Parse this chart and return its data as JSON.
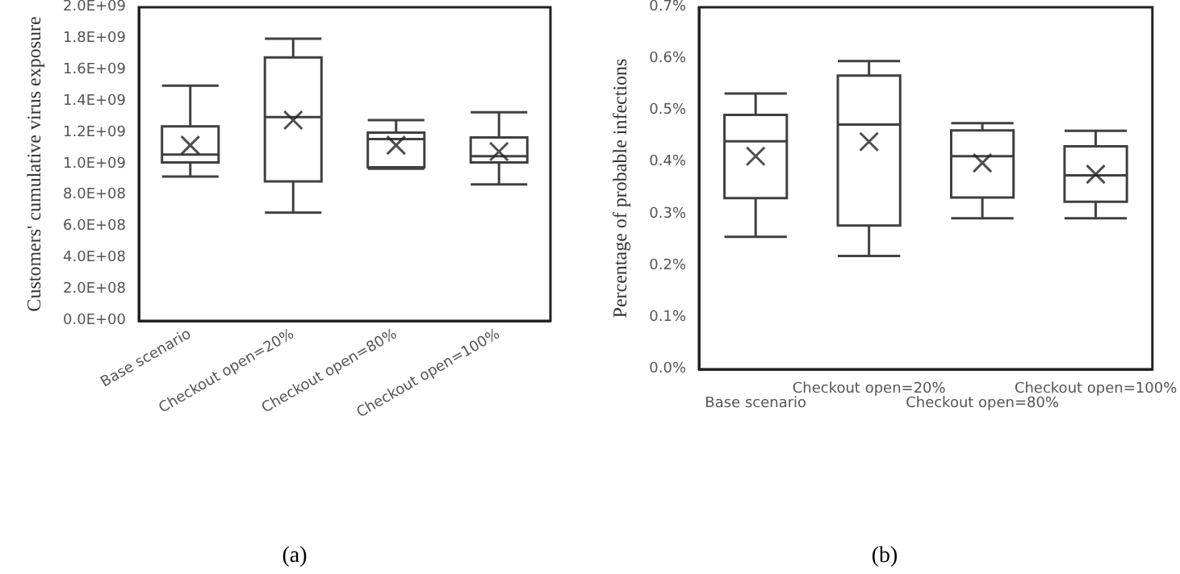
{
  "chart_data": [
    {
      "type": "box",
      "ylabel": "Customers' cumulative virus exposure",
      "categories": [
        "Base scenario",
        "Checkout open=20%",
        "Checkout open=80%",
        "Checkout open=100%"
      ],
      "color": "#404040",
      "marker": "cross",
      "boxes": [
        {
          "low": 920000000,
          "q1": 1010000000,
          "median": 1060000000,
          "q3": 1240000000,
          "high": 1500000000,
          "mean": 1120000000
        },
        {
          "low": 690000000,
          "q1": 890000000,
          "median": 1300000000,
          "q3": 1680000000,
          "high": 1800000000,
          "mean": 1280000000
        },
        {
          "low": 970000000,
          "q1": 980000000,
          "median": 1160000000,
          "q3": 1200000000,
          "high": 1280000000,
          "mean": 1120000000
        },
        {
          "low": 870000000,
          "q1": 1010000000,
          "median": 1050000000,
          "q3": 1170000000,
          "high": 1330000000,
          "mean": 1080000000
        }
      ],
      "ylim": [
        0,
        2000000000
      ],
      "yticks": [
        {
          "value": 0,
          "label": "0.0E+00"
        },
        {
          "value": 200000000,
          "label": "2.0E+08"
        },
        {
          "value": 400000000,
          "label": "4.0E+08"
        },
        {
          "value": 600000000,
          "label": "6.0E+08"
        },
        {
          "value": 800000000,
          "label": "8.0E+08"
        },
        {
          "value": 1000000000,
          "label": "1.0E+09"
        },
        {
          "value": 1200000000,
          "label": "1.2E+09"
        },
        {
          "value": 1400000000,
          "label": "1.4E+09"
        },
        {
          "value": 1600000000,
          "label": "1.6E+09"
        },
        {
          "value": 1800000000,
          "label": "1.8E+09"
        },
        {
          "value": 2000000000,
          "label": "2.0E+09"
        }
      ],
      "annotations": [
        "(a)"
      ]
    },
    {
      "type": "box",
      "ylabel": "Percentage of probable infections",
      "categories": [
        "Base scenario",
        "Checkout open=20%",
        "Checkout open=80%",
        "Checkout open=100%"
      ],
      "color": "#404040",
      "marker": "cross",
      "boxes": [
        {
          "low": 0.256,
          "q1": 0.331,
          "median": 0.441,
          "q3": 0.492,
          "high": 0.533,
          "mean": 0.412
        },
        {
          "low": 0.219,
          "q1": 0.278,
          "median": 0.473,
          "q3": 0.568,
          "high": 0.596,
          "mean": 0.44
        },
        {
          "low": 0.292,
          "q1": 0.332,
          "median": 0.412,
          "q3": 0.462,
          "high": 0.476,
          "mean": 0.399
        },
        {
          "low": 0.292,
          "q1": 0.324,
          "median": 0.375,
          "q3": 0.431,
          "high": 0.461,
          "mean": 0.377
        }
      ],
      "ylim": [
        0,
        0.7
      ],
      "yticks": [
        {
          "value": 0,
          "label": "0.0%"
        },
        {
          "value": 0.1,
          "label": "0.1%"
        },
        {
          "value": 0.2,
          "label": "0.2%"
        },
        {
          "value": 0.3,
          "label": "0.3%"
        },
        {
          "value": 0.4,
          "label": "0.4%"
        },
        {
          "value": 0.5,
          "label": "0.5%"
        },
        {
          "value": 0.6,
          "label": "0.6%"
        },
        {
          "value": 0.7,
          "label": "0.7%"
        }
      ],
      "annotations": [
        "(b)"
      ]
    }
  ]
}
